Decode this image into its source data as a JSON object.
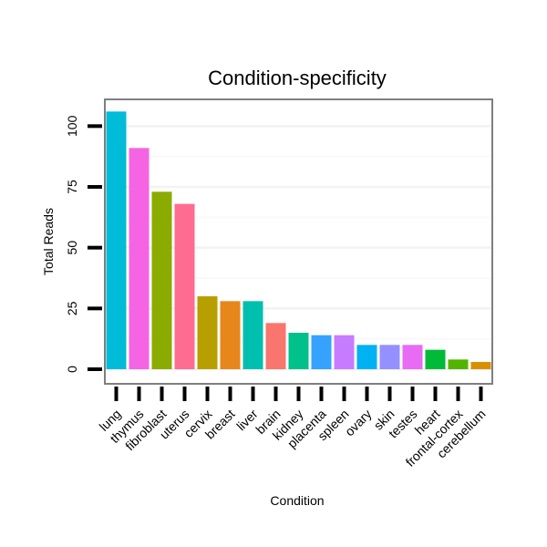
{
  "chart_data": {
    "type": "bar",
    "title": "Condition-specificity",
    "xlabel": "Condition",
    "ylabel": "Total Reads",
    "ylim": [
      -6,
      111
    ],
    "yticks": [
      0,
      25,
      50,
      75,
      100
    ],
    "grid": true,
    "categories": [
      "lung",
      "thymus",
      "fibroblast",
      "uterus",
      "cervix",
      "breast",
      "liver",
      "brain",
      "kidney",
      "placenta",
      "spleen",
      "ovary",
      "skin",
      "testes",
      "heart",
      "frontal-cortex",
      "cerebellum"
    ],
    "values": [
      106,
      91,
      73,
      68,
      30,
      28,
      28,
      19,
      15,
      14,
      14,
      10,
      10,
      10,
      8,
      4,
      3
    ],
    "colors": [
      "#00BCD8",
      "#F564E3",
      "#8CAB00",
      "#FF6C91",
      "#B89F00",
      "#E7861A",
      "#00BFAF",
      "#F8766D",
      "#00C08B",
      "#35A2FF",
      "#C77CFF",
      "#00B2F3",
      "#9590FF",
      "#E76BF3",
      "#00BA38",
      "#53B400",
      "#D89000"
    ]
  }
}
